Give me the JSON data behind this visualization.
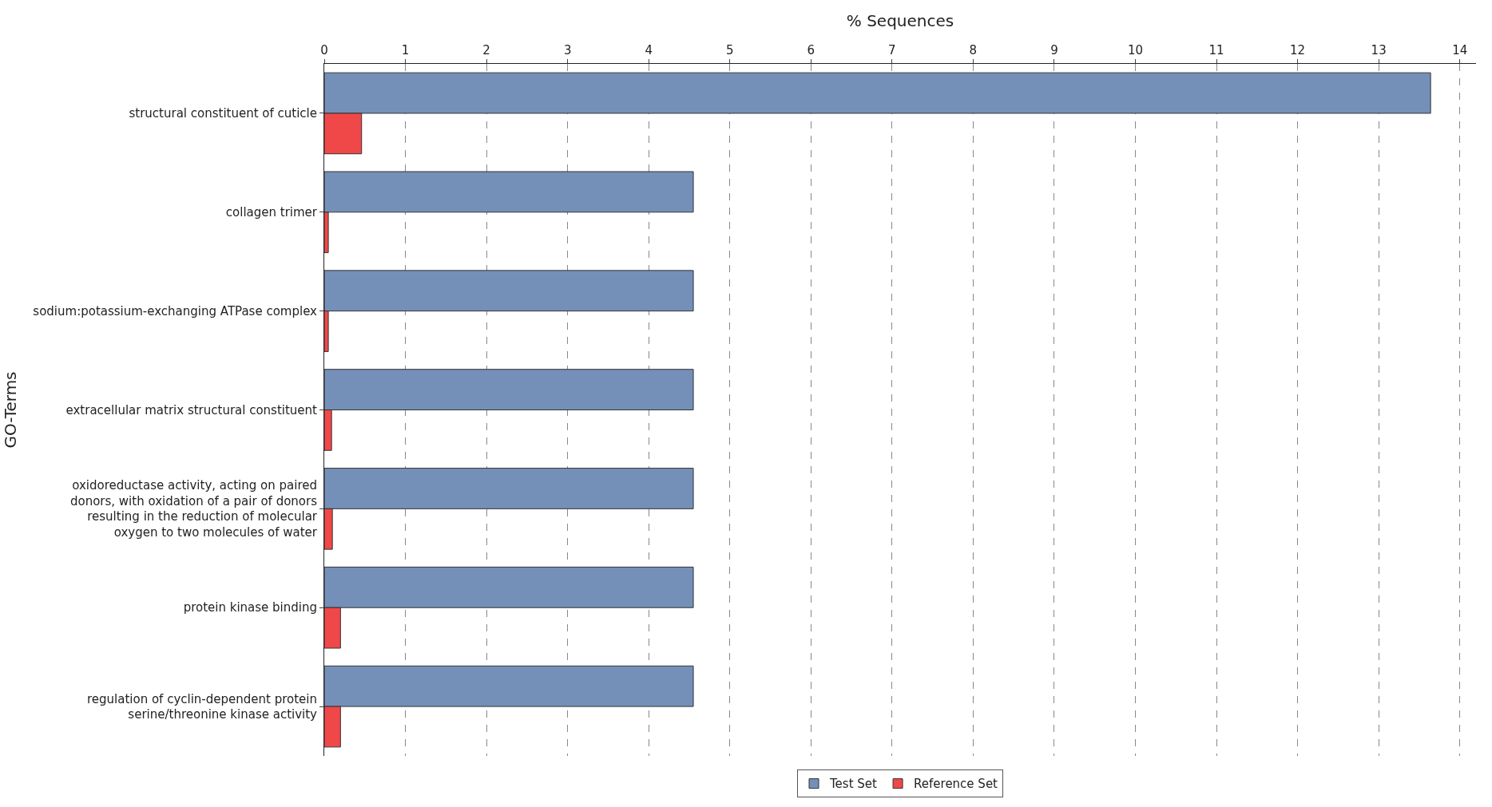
{
  "chart_data": {
    "type": "bar",
    "orientation": "horizontal",
    "xlabel": "% Sequences",
    "ylabel": "GO-Terms",
    "categories": [
      "structural constituent of cuticle",
      "collagen trimer",
      "sodium:potassium-exchanging ATPase complex",
      "extracellular matrix structural constituent",
      "oxidoreductase activity, acting on paired\ndonors, with oxidation of a pair of donors\nresulting in the reduction of molecular\noxygen to two molecules of water",
      "protein kinase binding",
      "regulation of cyclin-dependent protein\nserine/threonine kinase activity"
    ],
    "series": [
      {
        "name": "Test Set",
        "color": "#7490b8",
        "values": [
          13.64,
          4.55,
          4.55,
          4.55,
          4.55,
          4.55,
          4.55
        ]
      },
      {
        "name": "Reference Set",
        "color": "#f04848",
        "values": [
          0.46,
          0.05,
          0.05,
          0.09,
          0.1,
          0.2,
          0.2
        ]
      }
    ],
    "xlim": [
      0,
      14.2
    ],
    "xticks": [
      0,
      1,
      2,
      3,
      4,
      5,
      6,
      7,
      8,
      9,
      10,
      11,
      12,
      13,
      14
    ],
    "grid": "x",
    "legend": "bottom"
  }
}
